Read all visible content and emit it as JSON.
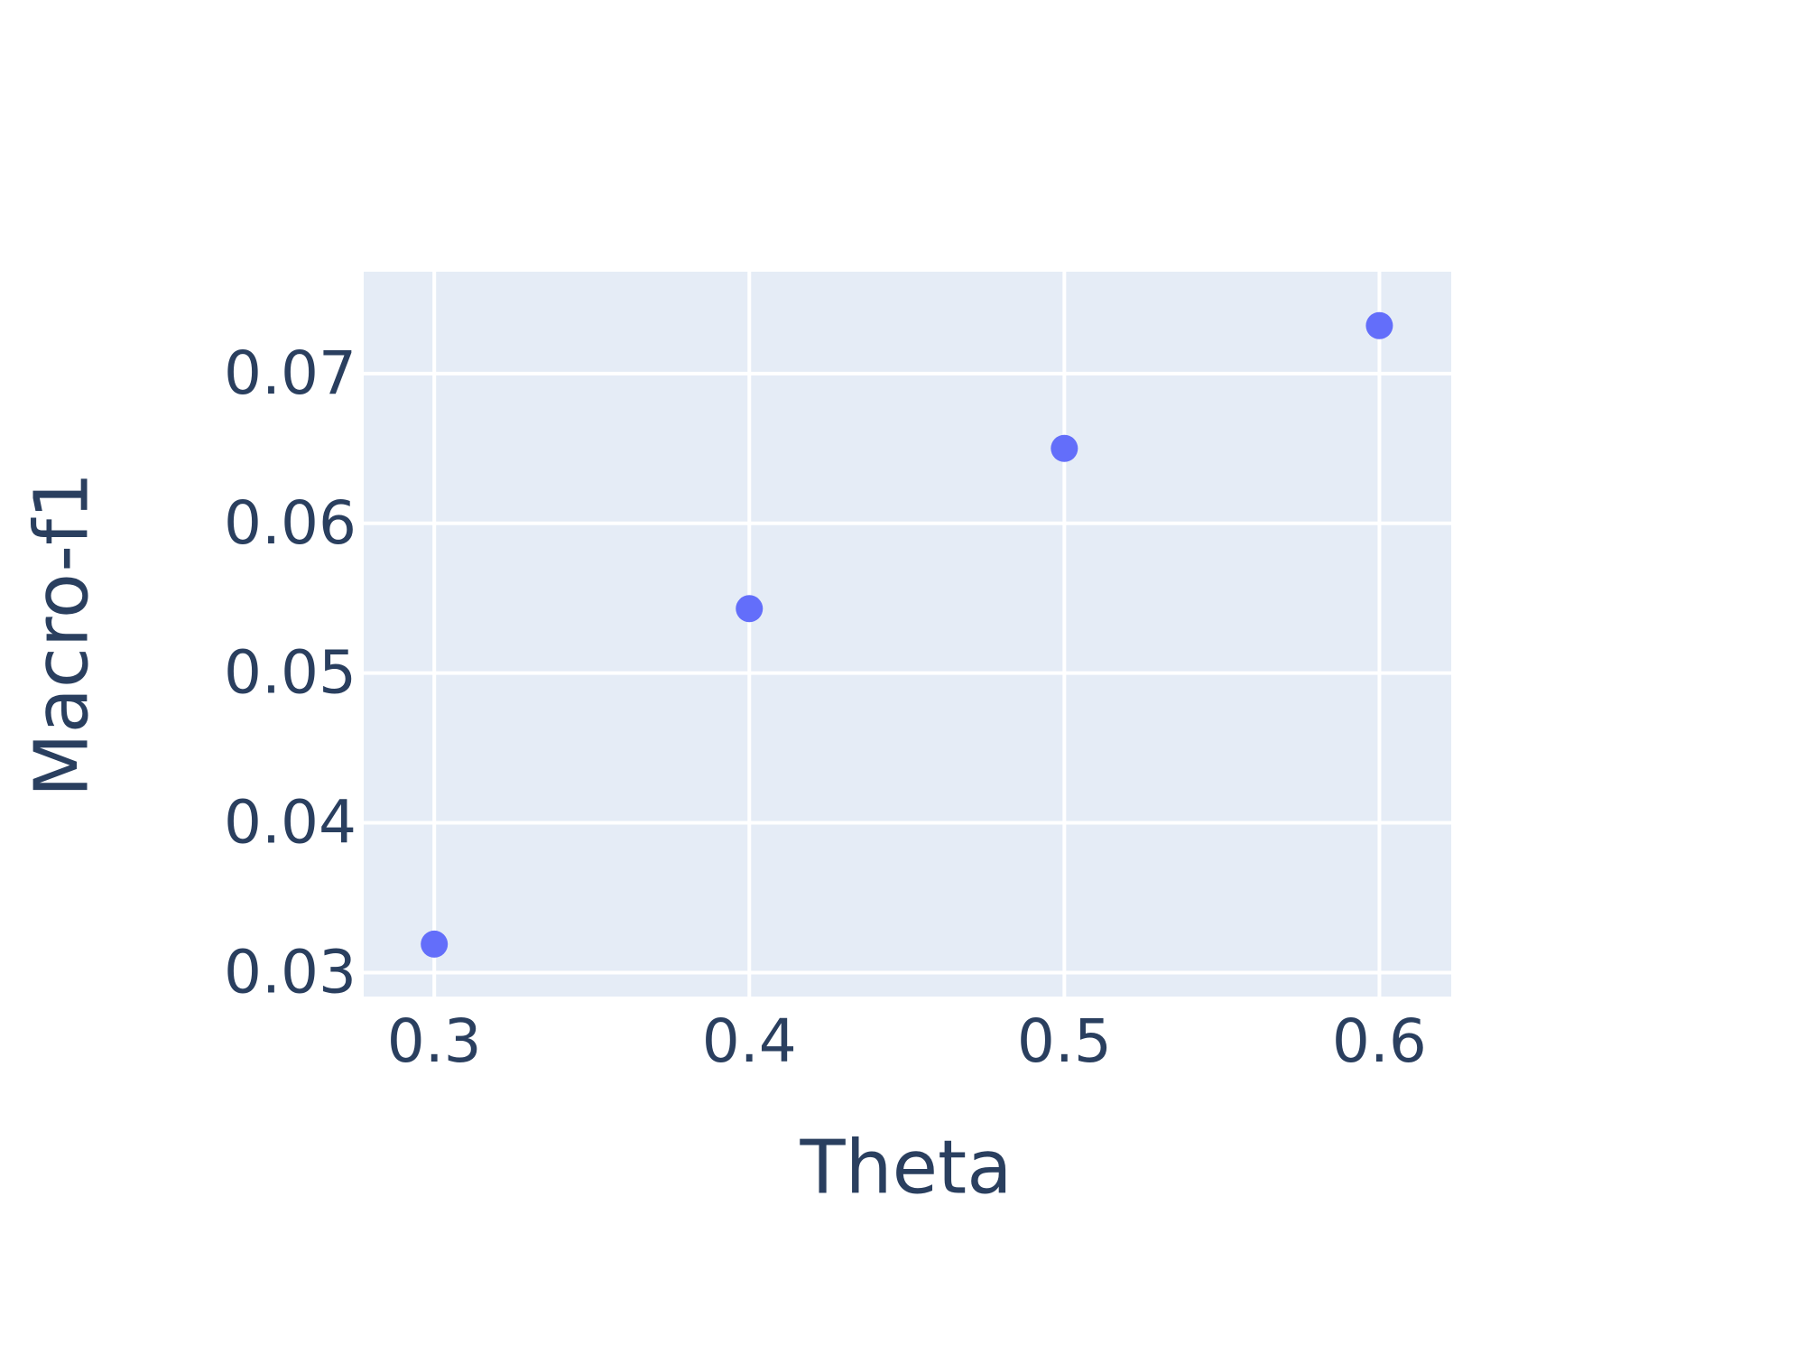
{
  "chart_data": {
    "type": "scatter",
    "x_label": "Theta",
    "y_label": "Macro-f1",
    "x": [
      0.3,
      0.4,
      0.5,
      0.6
    ],
    "series": [
      {
        "color": "#636efa",
        "values": [
          0.0319,
          0.0543,
          0.065,
          0.0732
        ]
      }
    ],
    "xlim": [
      0.2776,
      0.6228
    ],
    "xticks": [
      0.3,
      0.4,
      0.5,
      0.6
    ],
    "ylim": [
      0.0284,
      0.0768
    ],
    "yticks": [
      0.03,
      0.04,
      0.05,
      0.06,
      0.07
    ],
    "grid": true
  }
}
